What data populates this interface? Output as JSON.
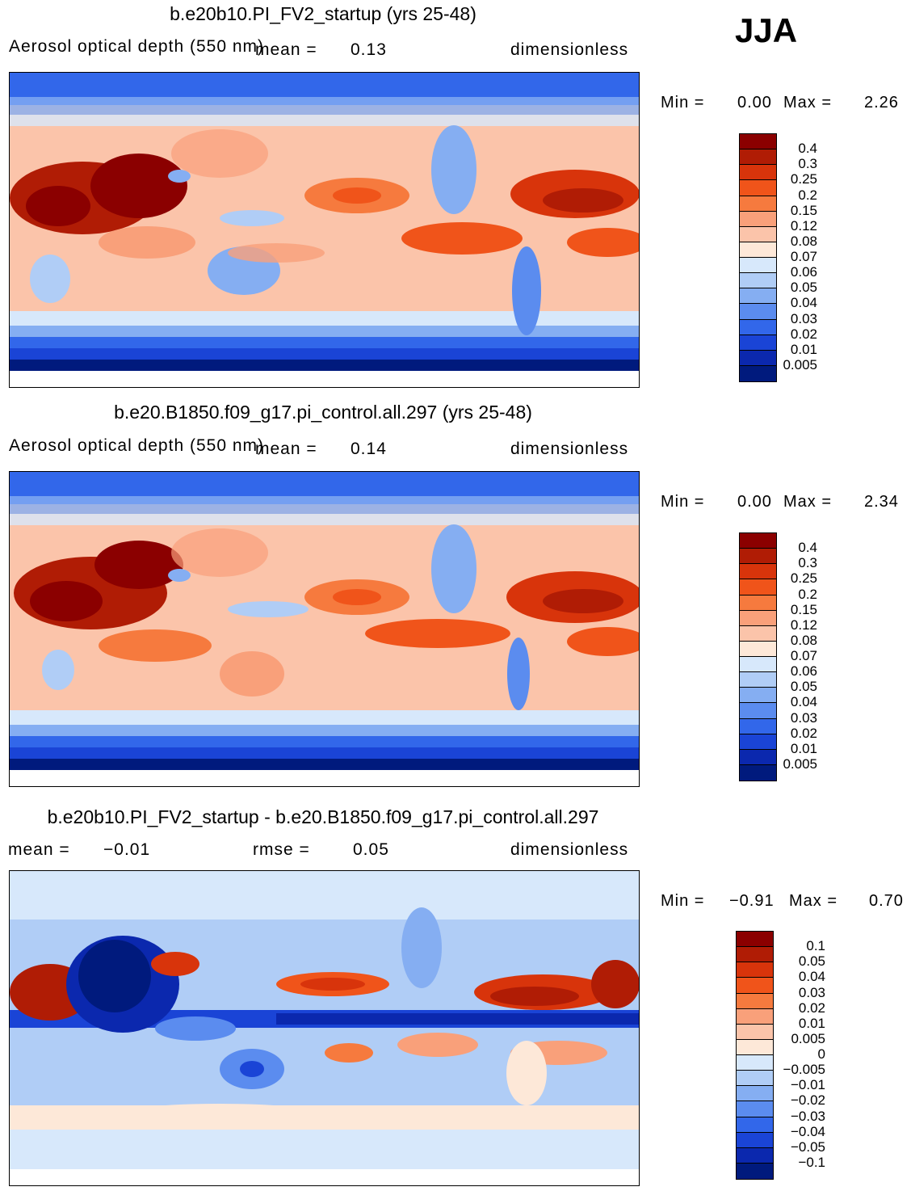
{
  "season": "JJA",
  "panels": [
    {
      "id": "top",
      "title": "b.e20b10.PI_FV2_startup (yrs 25-48)",
      "variable": "Aerosol optical depth (550 nm)",
      "mean_label": "mean =",
      "mean_value": "0.13",
      "units": "dimensionless",
      "min_label": "Min =",
      "min_value": "0.00",
      "max_label": "Max =",
      "max_value": "2.26"
    },
    {
      "id": "mid",
      "title": "b.e20.B1850.f09_g17.pi_control.all.297 (yrs 25-48)",
      "variable": "Aerosol optical depth (550 nm)",
      "mean_label": "mean =",
      "mean_value": "0.14",
      "units": "dimensionless",
      "min_label": "Min =",
      "min_value": "0.00",
      "max_label": "Max =",
      "max_value": "2.34"
    },
    {
      "id": "diff",
      "title": "b.e20b10.PI_FV2_startup - b.e20.B1850.f09_g17.pi_control.all.297",
      "mean_label": "mean =",
      "mean_value": "−0.01",
      "rmse_label": "rmse =",
      "rmse_value": "0.05",
      "units": "dimensionless",
      "min_label": "Min =",
      "min_value": "−0.91",
      "max_label": "Max =",
      "max_value": "0.70"
    }
  ],
  "colorbar_abs": {
    "labels": [
      "0.4",
      "0.3",
      "0.25",
      "0.2",
      "0.15",
      "0.12",
      "0.08",
      "0.07",
      "0.06",
      "0.05",
      "0.04",
      "0.03",
      "0.02",
      "0.01",
      "0.005"
    ],
    "colors": [
      "#8b0000",
      "#b01c05",
      "#d8340b",
      "#f0541a",
      "#f67a3e",
      "#f9a07a",
      "#fbc4aa",
      "#fde8d8",
      "#d7e8fb",
      "#b0cdf6",
      "#85aef2",
      "#5b8cef",
      "#3267ea",
      "#1a44d6",
      "#0b28ae",
      "#001a7d"
    ]
  },
  "colorbar_diff": {
    "labels": [
      "0.1",
      "0.05",
      "0.04",
      "0.03",
      "0.02",
      "0.01",
      "0.005",
      "0",
      "−0.005",
      "−0.01",
      "−0.02",
      "−0.03",
      "−0.04",
      "−0.05",
      "−0.1"
    ],
    "colors": [
      "#8b0000",
      "#b01c05",
      "#d8340b",
      "#f0541a",
      "#f67a3e",
      "#f9a07a",
      "#fbc4aa",
      "#fde8d8",
      "#d7e8fb",
      "#b0cdf6",
      "#85aef2",
      "#5b8cef",
      "#3267ea",
      "#1a44d6",
      "#0b28ae",
      "#001a7d"
    ]
  }
}
